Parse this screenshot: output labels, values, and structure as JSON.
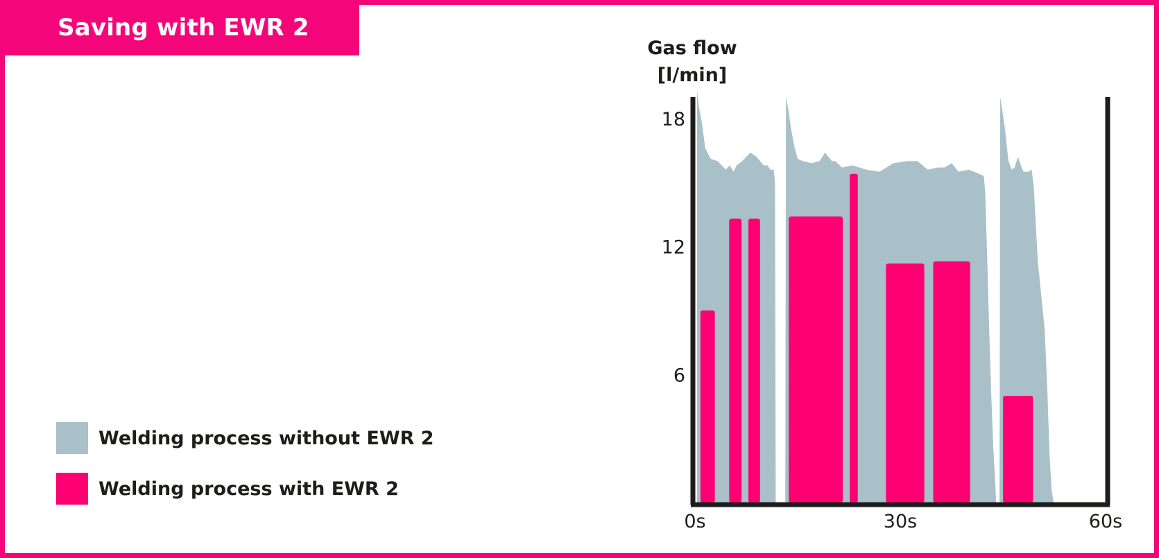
{
  "header": {
    "title": "Saving with EWR 2"
  },
  "legend": [
    {
      "label": "Welding process without EWR 2",
      "color": "#a9c0c8"
    },
    {
      "label": "Welding process with EWR 2",
      "color": "#ff0073"
    }
  ],
  "colors": {
    "frame": "#f5057a",
    "axis": "#1d1d1b"
  },
  "chart_data": {
    "type": "area",
    "title": "Saving with EWR 2",
    "ylabel": [
      "Gas flow",
      "[l/min]"
    ],
    "xlabel": "",
    "xlim": [
      0,
      60
    ],
    "ylim": [
      0,
      19
    ],
    "x_ticks": [
      {
        "value": 0,
        "label": "0s"
      },
      {
        "value": 30,
        "label": "30s"
      },
      {
        "value": 60,
        "label": "60s"
      }
    ],
    "y_ticks": [
      {
        "value": 18,
        "label": "18"
      },
      {
        "value": 12,
        "label": "12"
      },
      {
        "value": 6,
        "label": "6"
      }
    ],
    "grid": false,
    "series": [
      {
        "name": "Welding process without EWR 2",
        "color": "#a9c0c8",
        "segments": [
          {
            "x": [
              0.3,
              0.6,
              1.0,
              1.5,
              2.3,
              3.3,
              4.5,
              5.1,
              5.6,
              6.1,
              6.9,
              8.1,
              9.0,
              10.0,
              10.6,
              11.0,
              11.5,
              11.7,
              11.8
            ],
            "y": [
              19.3,
              18.5,
              17.8,
              16.6,
              16.1,
              16.0,
              15.6,
              15.8,
              15.5,
              15.8,
              16.0,
              16.4,
              16.2,
              15.8,
              15.8,
              15.6,
              15.6,
              15.0,
              0
            ]
          },
          {
            "x": [
              13.2,
              13.3,
              13.6,
              14.0,
              14.5,
              15.0,
              15.8,
              17.0,
              18.2,
              19.0,
              20.0,
              20.5,
              21.5,
              23.0,
              25.0,
              27.0,
              29.0,
              31.0,
              32.5,
              34.0,
              35.5,
              36.5,
              37.5,
              38.5,
              40.0,
              41.5,
              42.2,
              42.4,
              42.7,
              43.0,
              43.3,
              43.6,
              43.9,
              44.0
            ],
            "y": [
              0,
              19.0,
              18.5,
              17.6,
              16.7,
              16.1,
              16.0,
              15.9,
              16.0,
              16.4,
              16.0,
              16.0,
              15.7,
              15.8,
              15.6,
              15.5,
              15.9,
              16.0,
              16.0,
              15.6,
              15.7,
              15.7,
              15.9,
              15.5,
              15.6,
              15.4,
              15.3,
              14.6,
              11.5,
              8.0,
              5.0,
              2.5,
              0.8,
              0
            ]
          },
          {
            "x": [
              44.5,
              44.6,
              45.3,
              45.8,
              46.3,
              46.7,
              47.2,
              47.6,
              48.0,
              48.7,
              49.2,
              49.5,
              50.1,
              51.1,
              51.5,
              51.8,
              52.1,
              52.4
            ],
            "y": [
              0,
              19.0,
              17.5,
              16.0,
              15.6,
              15.7,
              16.2,
              15.8,
              15.5,
              15.5,
              15.6,
              14.8,
              11.3,
              8.1,
              5.2,
              2.3,
              0.6,
              0
            ]
          }
        ]
      },
      {
        "name": "Welding process with EWR 2",
        "color": "#ff0073",
        "bars": [
          {
            "start": 0.8,
            "end": 2.9,
            "value": 9.0
          },
          {
            "start": 5.0,
            "end": 6.8,
            "value": 13.3
          },
          {
            "start": 7.8,
            "end": 9.5,
            "value": 13.3
          },
          {
            "start": 13.7,
            "end": 21.6,
            "value": 13.4
          },
          {
            "start": 22.6,
            "end": 23.8,
            "value": 15.4
          },
          {
            "start": 27.9,
            "end": 33.5,
            "value": 11.2
          },
          {
            "start": 34.8,
            "end": 40.2,
            "value": 11.3
          },
          {
            "start": 45.0,
            "end": 49.4,
            "value": 5.0
          }
        ]
      }
    ]
  }
}
